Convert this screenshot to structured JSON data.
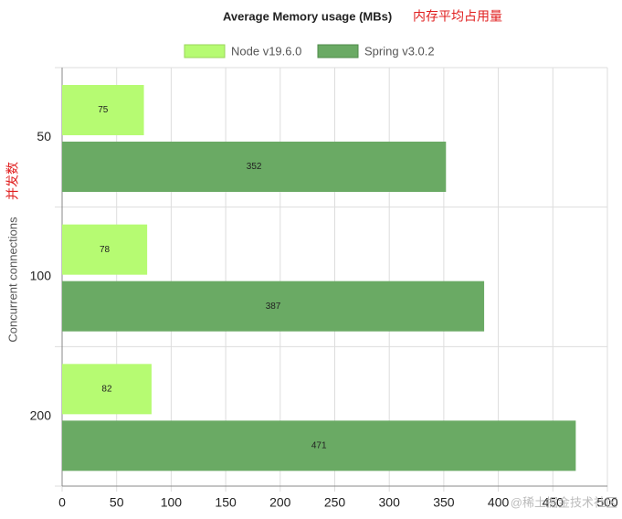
{
  "chart_data": {
    "type": "hbar",
    "title": "Average Memory usage (MBs)",
    "title_annotation": "内存平均占用量",
    "y_label": "Concurrent connections",
    "y_label_annotation": "并发数",
    "categories": [
      "50",
      "100",
      "200"
    ],
    "series": [
      {
        "name": "Node v19.6.0",
        "color": "#b6fb72",
        "values": [
          75,
          78,
          82
        ]
      },
      {
        "name": "Spring v3.0.2",
        "color": "#6aaa64",
        "values": [
          352,
          387,
          471
        ]
      }
    ],
    "xlim": [
      0,
      500
    ],
    "xticks": [
      0,
      50,
      100,
      150,
      200,
      250,
      300,
      350,
      400,
      450,
      500
    ],
    "grid": true,
    "legend": "top",
    "watermark": "@稀土掘金技术社区"
  }
}
